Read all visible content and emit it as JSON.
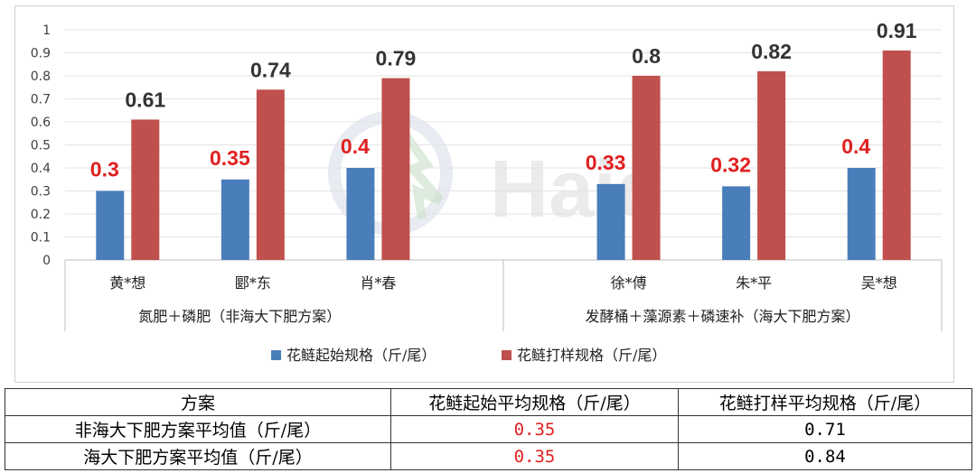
{
  "chart_data": {
    "type": "bar",
    "ylim": [
      0,
      1
    ],
    "yticks": [
      "0",
      "0.1",
      "0.2",
      "0.3",
      "0.4",
      "0.5",
      "0.6",
      "0.7",
      "0.8",
      "0.9",
      "1"
    ],
    "grid": true,
    "legend_position": "bottom",
    "groups": [
      {
        "label": "氮肥＋磷肥（非海大下肥方案）",
        "categories": [
          "黄*想",
          "郾*东",
          "肖*春"
        ]
      },
      {
        "label": "发酵桶＋藻源素＋磷速补（海大下肥方案）",
        "categories": [
          "徐*傅",
          "朱*平",
          "吴*想"
        ]
      }
    ],
    "series": [
      {
        "name": "花鲢起始规格（斤/尾）",
        "color": "#4a7ebb",
        "values": [
          0.3,
          0.35,
          0.4,
          0.33,
          0.32,
          0.4
        ],
        "labels": [
          "0.3",
          "0.35",
          "0.4",
          "0.33",
          "0.32",
          "0.4"
        ]
      },
      {
        "name": "花鲢打样规格（斤/尾）",
        "color": "#c0504d",
        "values": [
          0.61,
          0.74,
          0.79,
          0.8,
          0.82,
          0.91
        ],
        "labels": [
          "0.61",
          "0.74",
          "0.79",
          "0.8",
          "0.82",
          "0.91"
        ]
      }
    ],
    "label_colors": {
      "series0": "#e02020",
      "series1": "#333333"
    }
  },
  "watermark": "Haid",
  "table": {
    "headers": [
      "方案",
      "花鲢起始平均规格（斤/尾）",
      "花鲢打样平均规格（斤/尾）"
    ],
    "rows": [
      [
        "非海大下肥方案平均值（斤/尾）",
        "0.35",
        "0.71"
      ],
      [
        "海大下肥方案平均值（斤/尾）",
        "0.35",
        "0.84"
      ]
    ]
  }
}
